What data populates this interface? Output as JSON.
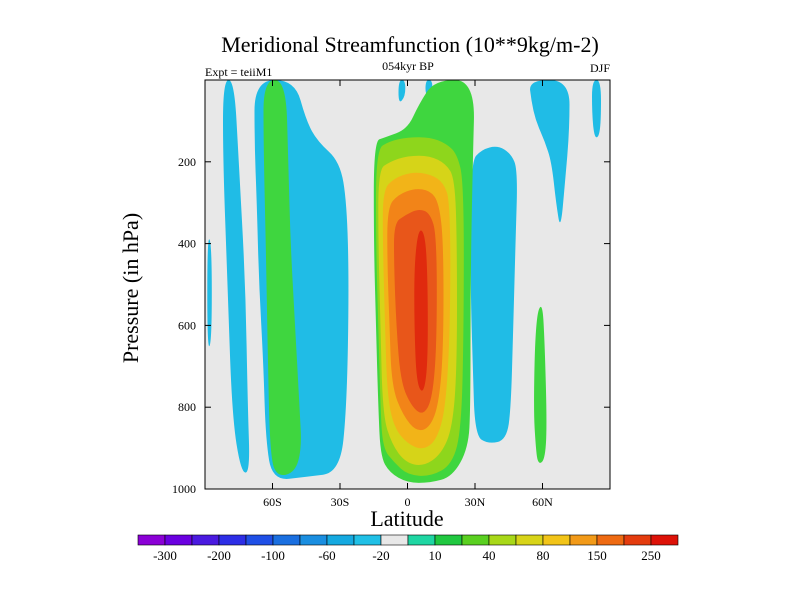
{
  "chart_data": {
    "type": "heatmap",
    "title": "Meridional Streamfunction (10**9kg/m-2)",
    "subtitle_left": "Expt = teiiM1",
    "subtitle_center": "054kyr BP",
    "subtitle_right": "DJF",
    "xlabel": "Latitude",
    "ylabel": "Pressure (in hPa)",
    "x_ticks": [
      {
        "value": -60,
        "label": "60S"
      },
      {
        "value": -30,
        "label": "30S"
      },
      {
        "value": 0,
        "label": "0"
      },
      {
        "value": 30,
        "label": "30N"
      },
      {
        "value": 60,
        "label": "60N"
      }
    ],
    "y_ticks": [
      {
        "value": 200,
        "label": "200"
      },
      {
        "value": 400,
        "label": "400"
      },
      {
        "value": 600,
        "label": "600"
      },
      {
        "value": 800,
        "label": "800"
      },
      {
        "value": 1000,
        "label": "1000"
      }
    ],
    "xlim": [
      -90,
      90
    ],
    "ylim": [
      1000,
      0
    ],
    "colorbar": {
      "colors": [
        "#8b00d6",
        "#6a00e0",
        "#4a1ae0",
        "#2d2ee6",
        "#1f4fe6",
        "#1a6fe0",
        "#1a8ee0",
        "#15a9e0",
        "#20c0e6",
        "#e8e8e8",
        "#1fd6a3",
        "#20c840",
        "#5ad020",
        "#a8d818",
        "#d8d418",
        "#f2c418",
        "#f29a18",
        "#ee6a12",
        "#e43c0e",
        "#dd1208"
      ],
      "labels": [
        "-300",
        "-200",
        "-100",
        "-60",
        "-20",
        "10",
        "40",
        "80",
        "150",
        "250"
      ]
    },
    "regions": [
      {
        "level": -20,
        "shape": "blob",
        "points": [
          [
            -82,
            0
          ],
          [
            -77,
            0
          ],
          [
            -75,
            200
          ],
          [
            -72,
            500
          ],
          [
            -71,
            800
          ],
          [
            -70,
            960
          ],
          [
            -74,
            960
          ],
          [
            -78,
            820
          ],
          [
            -80,
            500
          ],
          [
            -82,
            200
          ]
        ]
      },
      {
        "level": -20,
        "shape": "blob",
        "points": [
          [
            -89,
            380
          ],
          [
            -87,
            400
          ],
          [
            -87,
            640
          ],
          [
            -89,
            660
          ]
        ]
      },
      {
        "level": -20,
        "shape": "blob",
        "points": [
          [
            -68,
            0
          ],
          [
            -50,
            0
          ],
          [
            -45,
            100
          ],
          [
            -40,
            150
          ],
          [
            -30,
            200
          ],
          [
            -27,
            300
          ],
          [
            -26,
            500
          ],
          [
            -27,
            800
          ],
          [
            -30,
            960
          ],
          [
            -45,
            970
          ],
          [
            -60,
            980
          ],
          [
            -63,
            880
          ],
          [
            -64,
            700
          ],
          [
            -66,
            500
          ],
          [
            -67,
            300
          ],
          [
            -68,
            150
          ]
        ]
      },
      {
        "level": -20,
        "shape": "blob",
        "points": [
          [
            -4,
            0
          ],
          [
            -1,
            0
          ],
          [
            -1,
            40
          ],
          [
            -4,
            60
          ]
        ]
      },
      {
        "level": -20,
        "shape": "blob",
        "points": [
          [
            8,
            0
          ],
          [
            11,
            0
          ],
          [
            11,
            30
          ],
          [
            8,
            40
          ]
        ]
      },
      {
        "level": -20,
        "shape": "blob",
        "points": [
          [
            28,
            200
          ],
          [
            33,
            170
          ],
          [
            40,
            160
          ],
          [
            46,
            180
          ],
          [
            49,
            220
          ],
          [
            48,
            400
          ],
          [
            47,
            600
          ],
          [
            46,
            800
          ],
          [
            44,
            880
          ],
          [
            36,
            890
          ],
          [
            30,
            870
          ],
          [
            29,
            700
          ],
          [
            28,
            500
          ]
        ]
      },
      {
        "level": -20,
        "shape": "blob",
        "points": [
          [
            54,
            0
          ],
          [
            72,
            0
          ],
          [
            72,
            120
          ],
          [
            70,
            250
          ],
          [
            68,
            370
          ],
          [
            66,
            300
          ],
          [
            64,
            200
          ],
          [
            61,
            150
          ],
          [
            57,
            100
          ],
          [
            55,
            50
          ]
        ]
      },
      {
        "level": -20,
        "shape": "blob",
        "points": [
          [
            82,
            0
          ],
          [
            86,
            0
          ],
          [
            86,
            100
          ],
          [
            85,
            140
          ],
          [
            83,
            140
          ],
          [
            82,
            80
          ]
        ]
      },
      {
        "level": 10,
        "shape": "blob",
        "points": [
          [
            -64,
            0
          ],
          [
            -54,
            0
          ],
          [
            -53,
            200
          ],
          [
            -52,
            400
          ],
          [
            -50,
            600
          ],
          [
            -48,
            800
          ],
          [
            -47,
            900
          ],
          [
            -50,
            960
          ],
          [
            -58,
            970
          ],
          [
            -61,
            920
          ],
          [
            -62,
            700
          ],
          [
            -63,
            400
          ],
          [
            -64,
            150
          ]
        ]
      },
      {
        "level": 10,
        "shape": "blob",
        "points": [
          [
            57,
            580
          ],
          [
            60,
            540
          ],
          [
            61,
            650
          ],
          [
            62,
            850
          ],
          [
            61,
            930
          ],
          [
            58,
            940
          ],
          [
            57,
            900
          ],
          [
            56,
            800
          ]
        ]
      },
      {
        "level": 10,
        "shape": "blob",
        "points": [
          [
            -15,
            150
          ],
          [
            -10,
            140
          ],
          [
            0,
            120
          ],
          [
            5,
            60
          ],
          [
            12,
            0
          ],
          [
            30,
            0
          ],
          [
            29,
            200
          ],
          [
            28,
            500
          ],
          [
            28,
            800
          ],
          [
            27,
            900
          ],
          [
            20,
            970
          ],
          [
            10,
            985
          ],
          [
            0,
            985
          ],
          [
            -8,
            960
          ],
          [
            -12,
            920
          ],
          [
            -13,
            800
          ],
          [
            -14,
            600
          ],
          [
            -15,
            400
          ]
        ]
      },
      {
        "level": 40,
        "shape": "blob",
        "points": [
          [
            -14,
            170
          ],
          [
            -8,
            150
          ],
          [
            0,
            140
          ],
          [
            10,
            140
          ],
          [
            17,
            155
          ],
          [
            22,
            180
          ],
          [
            25,
            250
          ],
          [
            25,
            600
          ],
          [
            24,
            850
          ],
          [
            20,
            940
          ],
          [
            10,
            970
          ],
          [
            0,
            965
          ],
          [
            -6,
            935
          ],
          [
            -11,
            900
          ],
          [
            -12,
            800
          ],
          [
            -13,
            600
          ],
          [
            -14,
            400
          ]
        ]
      },
      {
        "level": 80,
        "shape": "blob",
        "points": [
          [
            -13,
            220
          ],
          [
            -8,
            200
          ],
          [
            0,
            185
          ],
          [
            10,
            185
          ],
          [
            17,
            205
          ],
          [
            21,
            240
          ],
          [
            22,
            400
          ],
          [
            22,
            700
          ],
          [
            20,
            850
          ],
          [
            15,
            915
          ],
          [
            7,
            945
          ],
          [
            -1,
            935
          ],
          [
            -7,
            890
          ],
          [
            -11,
            820
          ],
          [
            -12,
            600
          ],
          [
            -13,
            400
          ]
        ]
      },
      {
        "level": 110,
        "shape": "blob",
        "points": [
          [
            -11,
            270
          ],
          [
            -6,
            240
          ],
          [
            2,
            225
          ],
          [
            10,
            230
          ],
          [
            16,
            250
          ],
          [
            19,
            300
          ],
          [
            19,
            600
          ],
          [
            17,
            800
          ],
          [
            13,
            880
          ],
          [
            7,
            905
          ],
          [
            0,
            890
          ],
          [
            -6,
            850
          ],
          [
            -9,
            770
          ],
          [
            -10,
            600
          ],
          [
            -11,
            400
          ]
        ]
      },
      {
        "level": 150,
        "shape": "blob",
        "points": [
          [
            -9,
            310
          ],
          [
            -4,
            280
          ],
          [
            3,
            265
          ],
          [
            10,
            270
          ],
          [
            14,
            300
          ],
          [
            16,
            400
          ],
          [
            16,
            650
          ],
          [
            14,
            790
          ],
          [
            10,
            850
          ],
          [
            4,
            860
          ],
          [
            -2,
            820
          ],
          [
            -7,
            750
          ],
          [
            -8,
            600
          ],
          [
            -9,
            450
          ]
        ]
      },
      {
        "level": 200,
        "shape": "blob",
        "points": [
          [
            -6,
            350
          ],
          [
            -1,
            330
          ],
          [
            5,
            315
          ],
          [
            10,
            325
          ],
          [
            13,
            380
          ],
          [
            13,
            650
          ],
          [
            11,
            780
          ],
          [
            7,
            820
          ],
          [
            2,
            800
          ],
          [
            -3,
            740
          ],
          [
            -5,
            600
          ],
          [
            -6,
            450
          ]
        ]
      },
      {
        "level": 250,
        "shape": "blob",
        "points": [
          [
            5,
            360
          ],
          [
            8,
            380
          ],
          [
            9,
            500
          ],
          [
            9,
            700
          ],
          [
            7,
            770
          ],
          [
            4,
            740
          ],
          [
            3,
            600
          ],
          [
            3,
            450
          ]
        ]
      }
    ]
  }
}
